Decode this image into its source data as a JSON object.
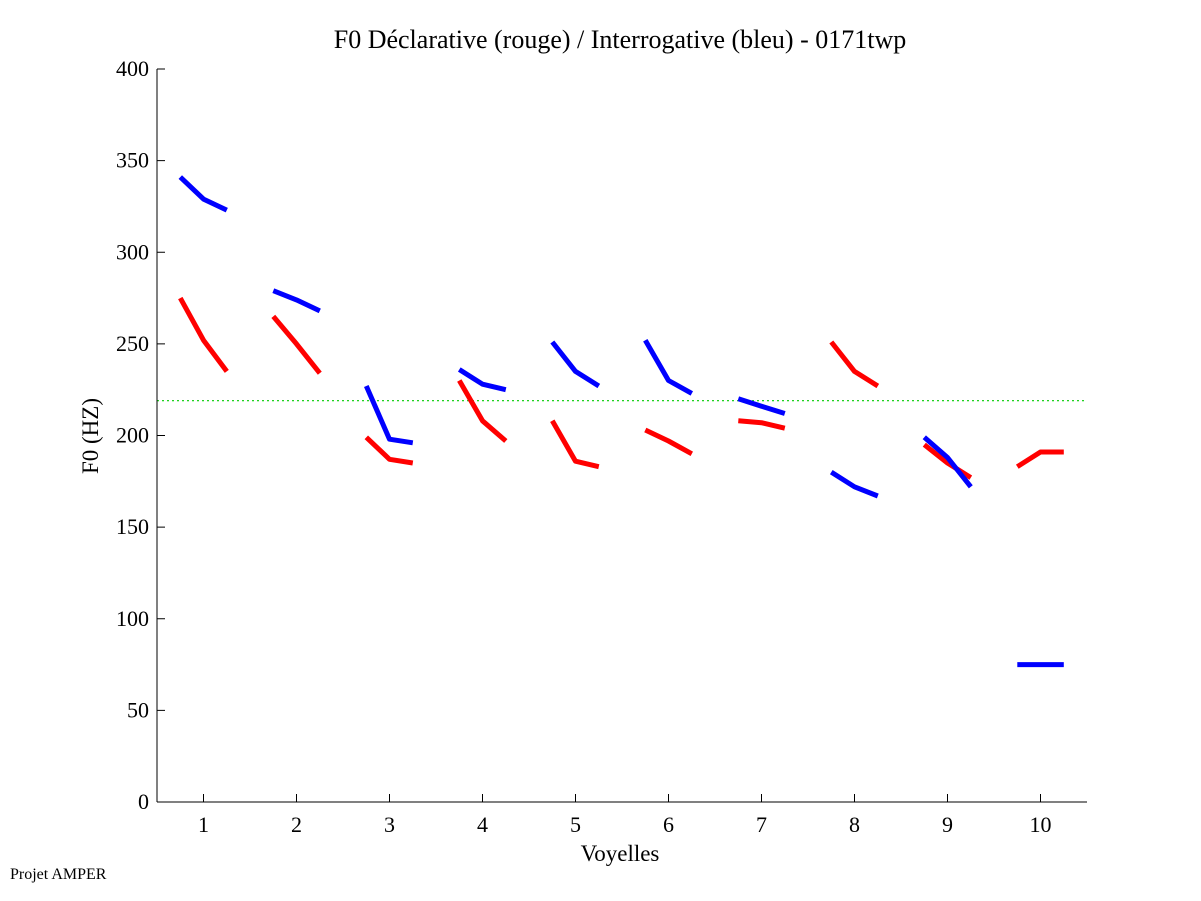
{
  "chart_data": {
    "type": "line",
    "title": "F0 Déclarative (rouge) / Interrogative (bleu) - 0171twp",
    "xlabel": "Voyelles",
    "ylabel": "F0 (HZ)",
    "footer": "Projet AMPER",
    "xlim": [
      0.5,
      10.5
    ],
    "ylim": [
      0,
      400
    ],
    "x_ticks": [
      "1",
      "2",
      "3",
      "4",
      "5",
      "6",
      "7",
      "8",
      "9",
      "10"
    ],
    "y_ticks": [
      "0",
      "50",
      "100",
      "150",
      "200",
      "250",
      "300",
      "350",
      "400"
    ],
    "grid": false,
    "reference_line": {
      "y": 219,
      "color": "#00cc00",
      "style": "dotted"
    },
    "series": [
      {
        "color": "#ff0000",
        "segments": [
          [
            [
              0.75,
              275
            ],
            [
              1.0,
              252
            ],
            [
              1.25,
              235
            ]
          ],
          [
            [
              1.75,
              265
            ],
            [
              2.0,
              250
            ],
            [
              2.25,
              234
            ]
          ],
          [
            [
              2.75,
              199
            ],
            [
              3.0,
              187
            ],
            [
              3.25,
              185
            ]
          ],
          [
            [
              3.75,
              230
            ],
            [
              4.0,
              208
            ],
            [
              4.25,
              197
            ]
          ],
          [
            [
              4.75,
              208
            ],
            [
              5.0,
              186
            ],
            [
              5.25,
              183
            ]
          ],
          [
            [
              5.75,
              203
            ],
            [
              6.0,
              197
            ],
            [
              6.25,
              190
            ]
          ],
          [
            [
              6.75,
              208
            ],
            [
              7.0,
              207
            ],
            [
              7.25,
              204
            ]
          ],
          [
            [
              7.75,
              251
            ],
            [
              8.0,
              235
            ],
            [
              8.25,
              227
            ]
          ],
          [
            [
              8.75,
              195
            ],
            [
              9.0,
              185
            ],
            [
              9.25,
              177
            ]
          ],
          [
            [
              9.75,
              183
            ],
            [
              10.0,
              191
            ],
            [
              10.25,
              191
            ]
          ]
        ]
      },
      {
        "color": "#0000ff",
        "segments": [
          [
            [
              0.75,
              341
            ],
            [
              1.0,
              329
            ],
            [
              1.25,
              323
            ]
          ],
          [
            [
              1.75,
              279
            ],
            [
              2.0,
              274
            ],
            [
              2.25,
              268
            ]
          ],
          [
            [
              2.75,
              227
            ],
            [
              3.0,
              198
            ],
            [
              3.25,
              196
            ]
          ],
          [
            [
              3.75,
              236
            ],
            [
              4.0,
              228
            ],
            [
              4.25,
              225
            ]
          ],
          [
            [
              4.75,
              251
            ],
            [
              5.0,
              235
            ],
            [
              5.25,
              227
            ]
          ],
          [
            [
              5.75,
              252
            ],
            [
              6.0,
              230
            ],
            [
              6.25,
              223
            ]
          ],
          [
            [
              6.75,
              220
            ],
            [
              7.0,
              216
            ],
            [
              7.25,
              212
            ]
          ],
          [
            [
              7.75,
              180
            ],
            [
              8.0,
              172
            ],
            [
              8.25,
              167
            ]
          ],
          [
            [
              8.75,
              199
            ],
            [
              9.0,
              188
            ],
            [
              9.25,
              172
            ]
          ],
          [
            [
              9.75,
              75
            ],
            [
              10.0,
              75
            ],
            [
              10.25,
              75
            ]
          ]
        ]
      }
    ]
  }
}
